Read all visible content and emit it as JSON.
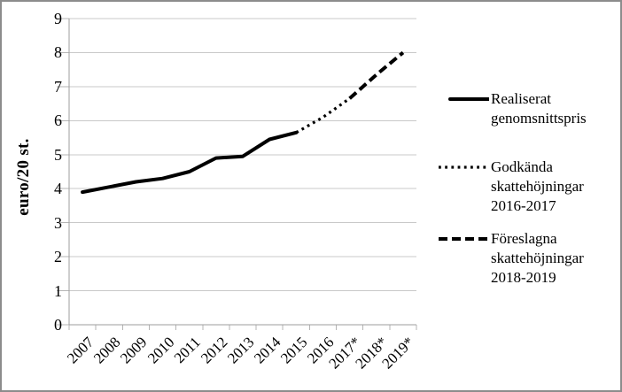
{
  "figure": {
    "y_axis_title": "euro/20 st."
  },
  "legend": {
    "items": [
      {
        "label": "Realiserat genomsnittspris",
        "style": "solid"
      },
      {
        "label": "Godkända skattehöjningar 2016-2017",
        "style": "dotted"
      },
      {
        "label": "Föreslagna skattehöjningar 2018-2019",
        "style": "dashed"
      }
    ]
  },
  "chart_data": {
    "type": "line",
    "title": "",
    "xlabel": "",
    "ylabel": "euro/20 st.",
    "ylim": [
      0,
      9
    ],
    "y_ticks": [
      0,
      1,
      2,
      3,
      4,
      5,
      6,
      7,
      8,
      9
    ],
    "grid": true,
    "legend_position": "right",
    "categories": [
      "2007",
      "2008",
      "2009",
      "2010",
      "2011",
      "2012",
      "2013",
      "2014",
      "2015",
      "2016",
      "2017*",
      "2018*",
      "2019*"
    ],
    "series": [
      {
        "name": "Realiserat genomsnittspris",
        "style": "solid",
        "x": [
          "2007",
          "2008",
          "2009",
          "2010",
          "2011",
          "2012",
          "2013",
          "2014",
          "2015"
        ],
        "values": [
          3.9,
          4.05,
          4.2,
          4.3,
          4.5,
          4.9,
          4.95,
          5.45,
          5.65
        ]
      },
      {
        "name": "Godkända skattehöjningar 2016-2017",
        "style": "dotted",
        "x": [
          "2015",
          "2016",
          "2017*"
        ],
        "values": [
          5.65,
          6.1,
          6.65
        ]
      },
      {
        "name": "Föreslagna skattehöjningar 2018-2019",
        "style": "dashed",
        "x": [
          "2017*",
          "2018*",
          "2019*"
        ],
        "values": [
          6.65,
          7.35,
          8.0
        ]
      }
    ]
  }
}
